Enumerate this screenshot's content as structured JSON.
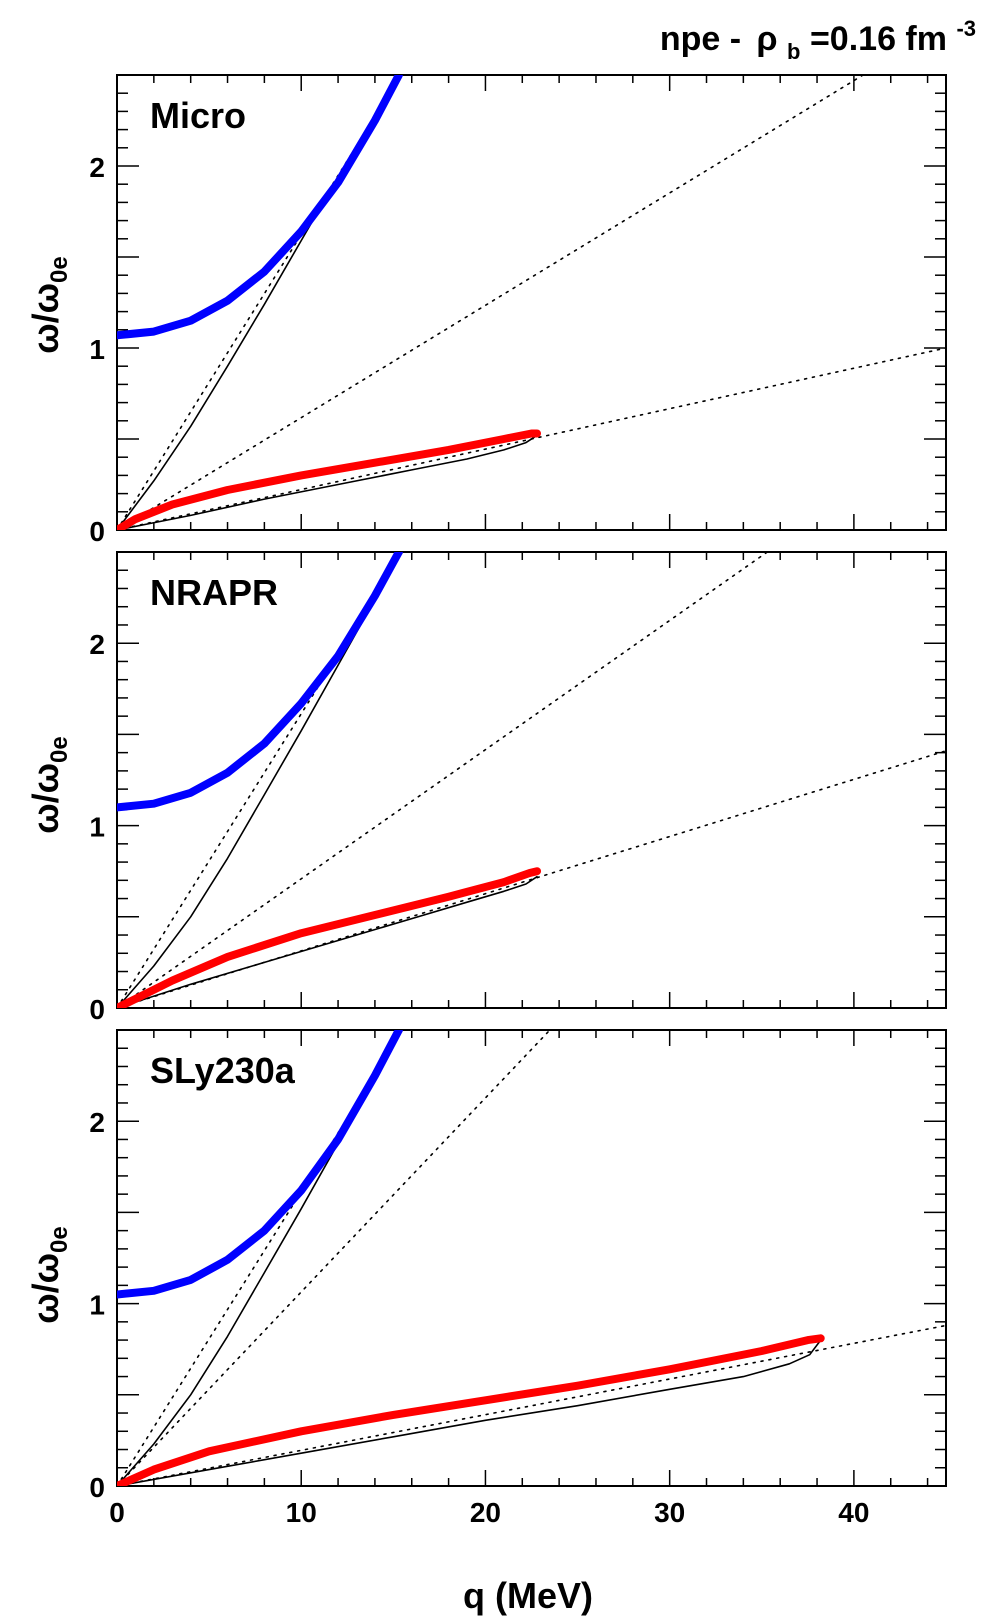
{
  "title": {
    "prefix": "npe - ",
    "rho": "ρ",
    "rho_sub": "b",
    "value": "=0.16 fm",
    "value_sup": "-3"
  },
  "ylabel": {
    "main": "ω/ω",
    "sub": "0e"
  },
  "xlabel": "q (MeV)",
  "colors": {
    "upper_branch": "#0000ff",
    "lower_branch": "#ff0000",
    "boundary": "#000000",
    "dotted": "#000000"
  },
  "chart_data": [
    {
      "type": "line",
      "annotation": "Micro",
      "xlim": [
        0,
        45
      ],
      "ylim": [
        0,
        2.5
      ],
      "x_ticks": [
        0,
        10,
        20,
        30,
        40
      ],
      "y_ticks": [
        0,
        1,
        2
      ],
      "y_tick_labels": [
        "0",
        "1",
        "2"
      ],
      "series": [
        {
          "role": "upper_branch",
          "x": [
            0,
            2,
            4,
            6,
            8,
            10,
            12,
            14,
            15.3
          ],
          "y": [
            1.07,
            1.09,
            1.15,
            1.26,
            1.42,
            1.64,
            1.91,
            2.25,
            2.5
          ]
        },
        {
          "role": "lower_branch",
          "x": [
            0,
            1,
            3,
            6,
            10,
            14,
            18,
            21,
            22.5,
            22.8
          ],
          "y": [
            0,
            0.06,
            0.14,
            0.22,
            0.3,
            0.37,
            0.44,
            0.5,
            0.53,
            0.53
          ]
        },
        {
          "role": "upper_boundary",
          "x": [
            0,
            2,
            4,
            6,
            8,
            10,
            12,
            14,
            15.2
          ],
          "y": [
            0,
            0.27,
            0.57,
            0.9,
            1.24,
            1.59,
            1.94,
            2.28,
            2.5
          ]
        },
        {
          "role": "lower_boundary",
          "x": [
            0,
            4,
            8,
            12,
            16,
            19,
            21,
            22.2,
            22.8
          ],
          "y": [
            0,
            0.08,
            0.17,
            0.25,
            0.33,
            0.39,
            0.44,
            0.48,
            0.52
          ]
        },
        {
          "role": "dotted",
          "x": [
            0,
            15.4
          ],
          "y": [
            0,
            2.5
          ]
        },
        {
          "role": "dotted",
          "x": [
            0,
            40.5
          ],
          "y": [
            0,
            2.5
          ]
        },
        {
          "role": "dotted",
          "x": [
            0,
            45
          ],
          "y": [
            0,
            1.0
          ]
        }
      ]
    },
    {
      "type": "line",
      "annotation": "NRAPR",
      "xlim": [
        0,
        45
      ],
      "ylim": [
        0,
        2.5
      ],
      "x_ticks": [
        0,
        10,
        20,
        30,
        40
      ],
      "y_ticks": [
        0,
        1,
        2
      ],
      "y_tick_labels": [
        "0",
        "1",
        "2"
      ],
      "series": [
        {
          "role": "upper_branch",
          "x": [
            0,
            2,
            4,
            6,
            8,
            10,
            12,
            14,
            15.3
          ],
          "y": [
            1.1,
            1.12,
            1.18,
            1.29,
            1.45,
            1.67,
            1.93,
            2.26,
            2.5
          ]
        },
        {
          "role": "lower_branch",
          "x": [
            0,
            1,
            3,
            6,
            10,
            14,
            18,
            21,
            22.4,
            22.8
          ],
          "y": [
            0,
            0.05,
            0.15,
            0.28,
            0.41,
            0.51,
            0.61,
            0.69,
            0.74,
            0.75
          ]
        },
        {
          "role": "upper_boundary",
          "x": [
            0,
            2,
            4,
            6,
            8,
            10,
            12,
            14,
            15.2
          ],
          "y": [
            0,
            0.23,
            0.5,
            0.82,
            1.17,
            1.52,
            1.88,
            2.24,
            2.5
          ]
        },
        {
          "role": "lower_boundary",
          "x": [
            0,
            4,
            8,
            12,
            16,
            19,
            21,
            22.2,
            22.8
          ],
          "y": [
            0,
            0.13,
            0.25,
            0.37,
            0.49,
            0.58,
            0.64,
            0.68,
            0.72
          ]
        },
        {
          "role": "dotted",
          "x": [
            0,
            15.5
          ],
          "y": [
            0,
            2.5
          ]
        },
        {
          "role": "dotted",
          "x": [
            0,
            35.3
          ],
          "y": [
            0,
            2.5
          ]
        },
        {
          "role": "dotted",
          "x": [
            0,
            45
          ],
          "y": [
            0,
            1.41
          ]
        }
      ]
    },
    {
      "type": "line",
      "annotation": "SLy230a",
      "xlim": [
        0,
        45
      ],
      "ylim": [
        0,
        2.5
      ],
      "x_ticks": [
        0,
        10,
        20,
        30,
        40
      ],
      "y_ticks": [
        0,
        1,
        2
      ],
      "y_tick_labels": [
        "0",
        "1",
        "2"
      ],
      "x_tick_labels": [
        "0",
        "10",
        "20",
        "30",
        "40"
      ],
      "series": [
        {
          "role": "upper_branch",
          "x": [
            0,
            2,
            4,
            6,
            8,
            10,
            12,
            14,
            15.3
          ],
          "y": [
            1.05,
            1.07,
            1.13,
            1.24,
            1.4,
            1.62,
            1.9,
            2.25,
            2.5
          ]
        },
        {
          "role": "lower_branch",
          "x": [
            0,
            2,
            5,
            10,
            15,
            20,
            25,
            30,
            35,
            37.5,
            38.2
          ],
          "y": [
            0,
            0.09,
            0.19,
            0.3,
            0.39,
            0.47,
            0.55,
            0.64,
            0.74,
            0.8,
            0.81
          ]
        },
        {
          "role": "upper_boundary",
          "x": [
            0,
            2,
            4,
            6,
            8,
            10,
            12,
            14,
            15.2
          ],
          "y": [
            0,
            0.23,
            0.5,
            0.82,
            1.17,
            1.52,
            1.88,
            2.24,
            2.5
          ]
        },
        {
          "role": "lower_boundary",
          "x": [
            0,
            5,
            10,
            15,
            20,
            25,
            30,
            34,
            36.5,
            37.6,
            38.2
          ],
          "y": [
            0,
            0.09,
            0.18,
            0.27,
            0.36,
            0.44,
            0.53,
            0.6,
            0.67,
            0.72,
            0.8
          ]
        },
        {
          "role": "dotted",
          "x": [
            0,
            15.5
          ],
          "y": [
            0,
            2.5
          ]
        },
        {
          "role": "dotted",
          "x": [
            0,
            23.5
          ],
          "y": [
            0,
            2.5
          ]
        },
        {
          "role": "dotted",
          "x": [
            0,
            45
          ],
          "y": [
            0,
            0.88
          ]
        }
      ]
    }
  ]
}
